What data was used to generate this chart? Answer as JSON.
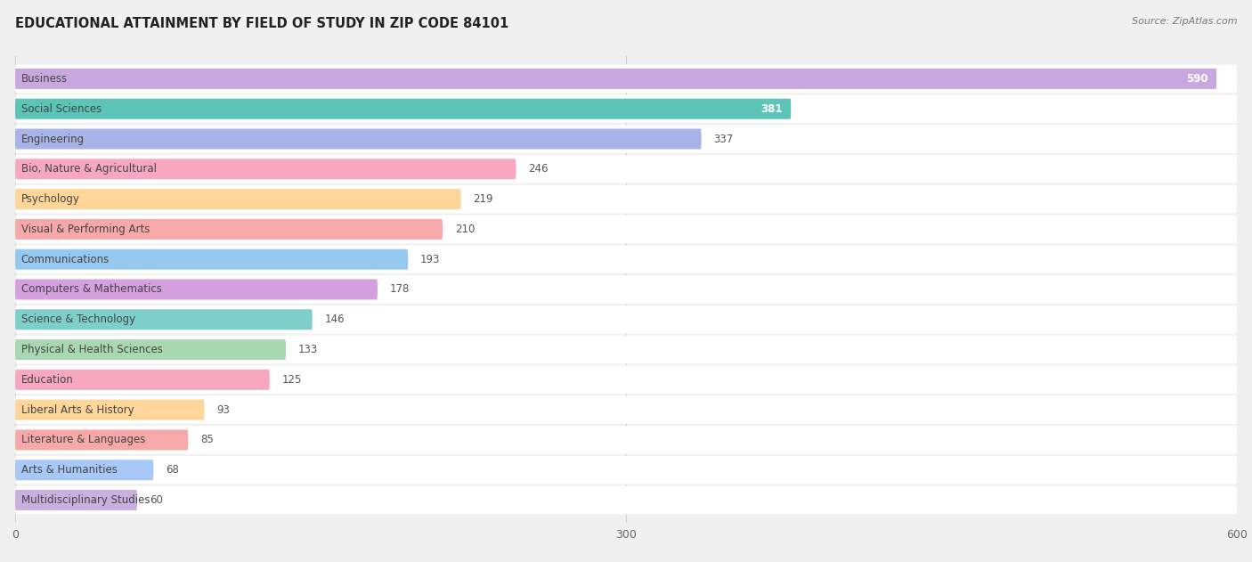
{
  "title": "EDUCATIONAL ATTAINMENT BY FIELD OF STUDY IN ZIP CODE 84101",
  "source": "Source: ZipAtlas.com",
  "categories": [
    "Business",
    "Social Sciences",
    "Engineering",
    "Bio, Nature & Agricultural",
    "Psychology",
    "Visual & Performing Arts",
    "Communications",
    "Computers & Mathematics",
    "Science & Technology",
    "Physical & Health Sciences",
    "Education",
    "Liberal Arts & History",
    "Literature & Languages",
    "Arts & Humanities",
    "Multidisciplinary Studies"
  ],
  "values": [
    590,
    381,
    337,
    246,
    219,
    210,
    193,
    178,
    146,
    133,
    125,
    93,
    85,
    68,
    60
  ],
  "colors": [
    "#c9a8e0",
    "#5cc5b8",
    "#a8b4e8",
    "#f7a8c0",
    "#ffd699",
    "#f7a8a8",
    "#96c8f0",
    "#d4a0e0",
    "#7ecfca",
    "#a8d8b0",
    "#f7a8c0",
    "#ffd699",
    "#f7a8a8",
    "#a8c8f8",
    "#c8b0e0"
  ],
  "xlim": [
    0,
    600
  ],
  "xticks": [
    0,
    300,
    600
  ],
  "background_color": "#f0f0f0",
  "row_bg_color": "#ffffff",
  "title_fontsize": 10.5,
  "source_fontsize": 8,
  "label_fontsize": 8.5,
  "value_fontsize": 8.5,
  "value_threshold": 340
}
